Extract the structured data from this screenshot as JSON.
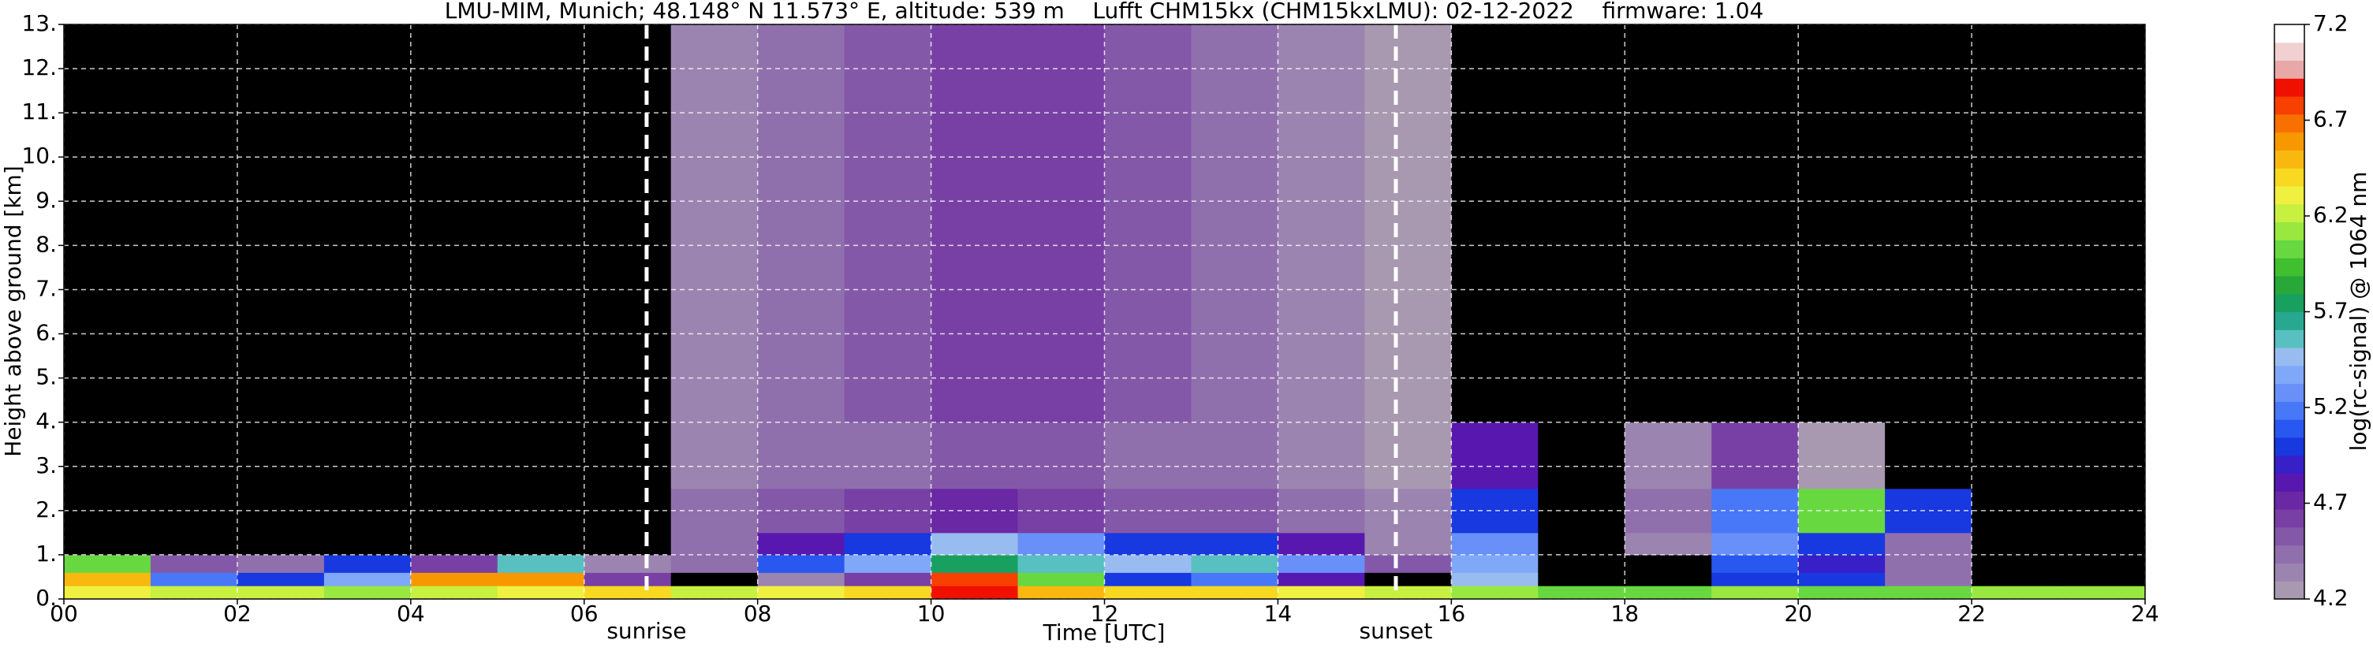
{
  "chart_data": {
    "type": "heatmap",
    "title": "LMU-MIM, Munich; 48.148° N 11.573° E, altitude: 539 m    Lufft CHM15kx (CHM15kxLMU): 02-12-2022    firmware: 1.04",
    "xlabel": "Time [UTC]",
    "ylabel": "Height above ground [km]",
    "colorbar_label": "log(rc-signal) @ 1064 nm",
    "xlim": [
      0,
      24
    ],
    "ylim": [
      0,
      13
    ],
    "xticks": [
      {
        "value": 0,
        "label": "00"
      },
      {
        "value": 2,
        "label": "02"
      },
      {
        "value": 4,
        "label": "04"
      },
      {
        "value": 6,
        "label": "06"
      },
      {
        "value": 8,
        "label": "08"
      },
      {
        "value": 10,
        "label": "10"
      },
      {
        "value": 12,
        "label": "12"
      },
      {
        "value": 14,
        "label": "14"
      },
      {
        "value": 16,
        "label": "16"
      },
      {
        "value": 18,
        "label": "18"
      },
      {
        "value": 20,
        "label": "20"
      },
      {
        "value": 22,
        "label": "22"
      },
      {
        "value": 24,
        "label": "24"
      }
    ],
    "yticks": [
      {
        "value": 0,
        "label": "0."
      },
      {
        "value": 1,
        "label": "1."
      },
      {
        "value": 2,
        "label": "2."
      },
      {
        "value": 3,
        "label": "3."
      },
      {
        "value": 4,
        "label": "4."
      },
      {
        "value": 5,
        "label": "5."
      },
      {
        "value": 6,
        "label": "6."
      },
      {
        "value": 7,
        "label": "7."
      },
      {
        "value": 8,
        "label": "8."
      },
      {
        "value": 9,
        "label": "9."
      },
      {
        "value": 10,
        "label": "10."
      },
      {
        "value": 11,
        "label": "11."
      },
      {
        "value": 12,
        "label": "12."
      },
      {
        "value": 13,
        "label": "13."
      }
    ],
    "clim": [
      4.2,
      7.2
    ],
    "cticks": [
      4.2,
      4.7,
      5.2,
      5.7,
      6.2,
      6.7,
      7.2
    ],
    "under_color": "#000000",
    "colormap": [
      "#a898b0",
      "#9c84b0",
      "#9070ac",
      "#8458a8",
      "#7840a4",
      "#6a28a4",
      "#5818b0",
      "#3820c8",
      "#1838e0",
      "#2858f0",
      "#4878f8",
      "#6890f8",
      "#80a8f8",
      "#98bcf0",
      "#58c0c0",
      "#28a890",
      "#18a060",
      "#28a838",
      "#40c030",
      "#68d840",
      "#98e840",
      "#c8f040",
      "#f0f040",
      "#f8d820",
      "#f8b810",
      "#f89800",
      "#f87000",
      "#f84000",
      "#f01000",
      "#e8a8a8",
      "#f0d0d0",
      "#ffffff"
    ],
    "grid": true,
    "grid_color": "#ffffff",
    "annotations": [
      {
        "x": 6.72,
        "label": "sunrise"
      },
      {
        "x": 15.36,
        "label": "sunset"
      }
    ],
    "x_edges": [
      0,
      1,
      2,
      3,
      4,
      5,
      6,
      7,
      8,
      9,
      10,
      11,
      12,
      13,
      14,
      15,
      16,
      17,
      18,
      19,
      20,
      21,
      22,
      23,
      24
    ],
    "y_edges": [
      0,
      0.3,
      0.6,
      1.0,
      1.5,
      2.5,
      4,
      13
    ],
    "z": [
      [
        6.3,
        6.2,
        6.2,
        6.1,
        6.2,
        6.3,
        6.4,
        6.2,
        6.3,
        6.4,
        6.9,
        6.5,
        6.4,
        6.4,
        6.3,
        6.2,
        6.1,
        6.0,
        6.0,
        6.1,
        6.0,
        6.0,
        6.1,
        6.1
      ],
      [
        6.5,
        5.2,
        5.0,
        5.4,
        6.6,
        6.6,
        4.6,
        4.0,
        4.3,
        4.6,
        6.8,
        6.0,
        5.0,
        5.2,
        4.8,
        4.0,
        5.5,
        3.8,
        3.8,
        5.0,
        5.0,
        4.4,
        3.8,
        3.8
      ],
      [
        6.0,
        4.5,
        4.4,
        5.0,
        4.6,
        5.6,
        4.3,
        4.4,
        5.1,
        5.4,
        5.7,
        5.6,
        5.5,
        5.6,
        5.3,
        4.5,
        5.4,
        3.8,
        4.0,
        5.1,
        4.9,
        4.4,
        3.7,
        3.7
      ],
      [
        3.9,
        3.8,
        3.8,
        3.8,
        3.8,
        3.8,
        3.9,
        4.4,
        4.8,
        5.0,
        5.5,
        5.3,
        5.0,
        5.0,
        4.8,
        4.3,
        5.3,
        3.9,
        4.3,
        5.3,
        5.0,
        4.4,
        3.8,
        3.8
      ],
      [
        3.8,
        3.8,
        3.8,
        3.8,
        3.8,
        3.8,
        3.9,
        4.4,
        4.5,
        4.6,
        4.7,
        4.6,
        4.5,
        4.5,
        4.4,
        4.3,
        5.0,
        4.0,
        4.4,
        5.2,
        6.0,
        5.0,
        3.8,
        3.8
      ],
      [
        3.8,
        3.8,
        3.8,
        3.8,
        3.8,
        3.8,
        3.9,
        4.3,
        4.4,
        4.4,
        4.5,
        4.5,
        4.4,
        4.4,
        4.3,
        4.2,
        4.8,
        3.9,
        4.3,
        4.6,
        4.2,
        3.9,
        3.8,
        3.8
      ],
      [
        4.1,
        4.1,
        4.1,
        4.1,
        4.1,
        4.1,
        4.1,
        4.3,
        4.4,
        4.5,
        4.6,
        4.6,
        4.5,
        4.4,
        4.3,
        4.2,
        4.1,
        4.1,
        4.1,
        4.1,
        4.1,
        4.1,
        4.1,
        4.1
      ]
    ]
  }
}
